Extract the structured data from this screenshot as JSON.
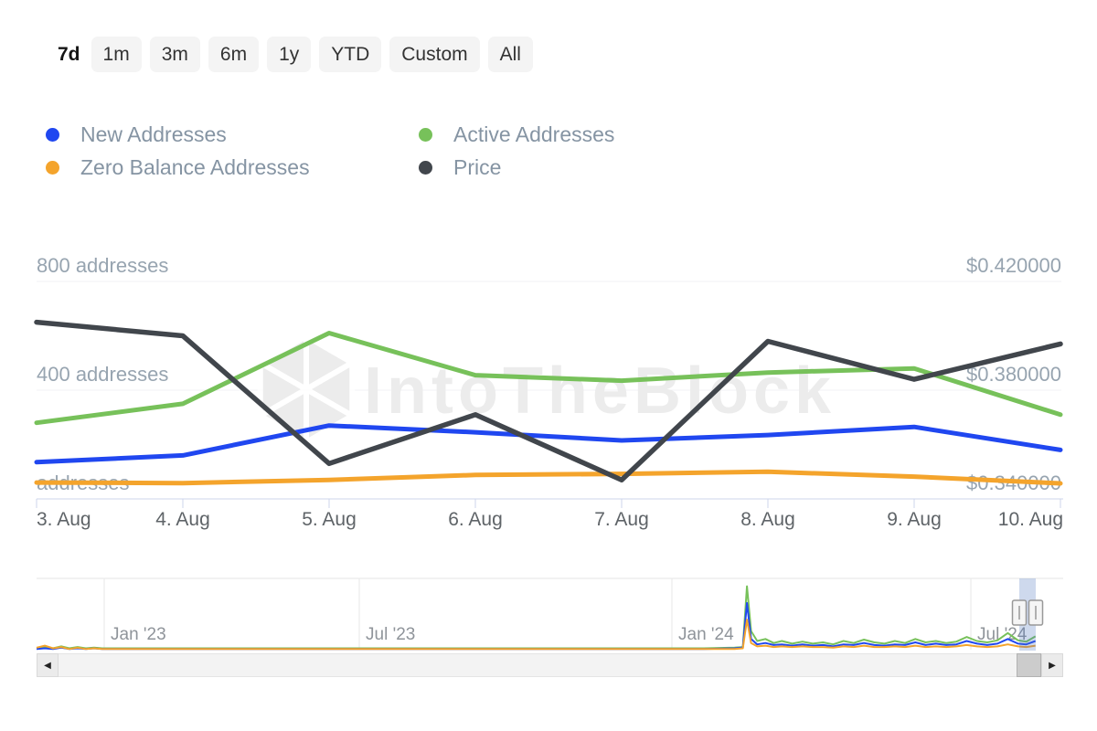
{
  "range_selector": {
    "buttons": [
      "7d",
      "1m",
      "3m",
      "6m",
      "1y",
      "YTD",
      "Custom",
      "All"
    ],
    "selected": "7d"
  },
  "legend": [
    {
      "label": "New Addresses",
      "color": "#2047f0"
    },
    {
      "label": "Active Addresses",
      "color": "#77c15a"
    },
    {
      "label": "Zero Balance Addresses",
      "color": "#f4a42c"
    },
    {
      "label": "Price",
      "color": "#41464c"
    }
  ],
  "watermark": {
    "text": "IntoTheBlock"
  },
  "scrollbar": {
    "left_glyph": "◀",
    "right_glyph": "▶"
  },
  "chart_data": {
    "type": "line",
    "title": "",
    "categories": [
      "3. Aug",
      "4. Aug",
      "5. Aug",
      "6. Aug",
      "7. Aug",
      "8. Aug",
      "9. Aug",
      "10. Aug"
    ],
    "series": [
      {
        "name": "Active Addresses",
        "color": "#77c15a",
        "axis": "addresses",
        "values": [
          280,
          350,
          610,
          455,
          435,
          465,
          480,
          310
        ]
      },
      {
        "name": "New Addresses",
        "color": "#2047f0",
        "axis": "addresses",
        "values": [
          135,
          160,
          270,
          245,
          215,
          235,
          265,
          180
        ]
      },
      {
        "name": "Zero Balance Addresses",
        "color": "#f4a42c",
        "axis": "addresses",
        "values": [
          60,
          58,
          70,
          88,
          92,
          100,
          82,
          57
        ]
      },
      {
        "name": "Price",
        "color": "#41464c",
        "axis": "price",
        "values": [
          0.405,
          0.4,
          0.353,
          0.371,
          0.347,
          0.398,
          0.384,
          0.397
        ]
      }
    ],
    "y_left": {
      "labels": [
        "800 addresses",
        "400 addresses",
        "addresses"
      ],
      "values": [
        800,
        400,
        0
      ],
      "lim": [
        0,
        800
      ]
    },
    "y_right": {
      "labels": [
        "$0.420000",
        "$0.380000",
        "$0.340000"
      ],
      "values": [
        0.42,
        0.38,
        0.34
      ],
      "lim": [
        0.34,
        0.42
      ]
    },
    "grid": "horizontal",
    "legend_position": "top-left",
    "navigator": {
      "labels": [
        "Jan '23",
        "Jul '23",
        "Jan '24",
        "Jul '24"
      ],
      "note": "full-history mini chart, large spike near Jan '24, selection at right edge",
      "xs": [
        0,
        8,
        16,
        24,
        32,
        40,
        48,
        56,
        64,
        72,
        100,
        150,
        220,
        300,
        380,
        460,
        540,
        600,
        650,
        680,
        688,
        692,
        696,
        702,
        710,
        718,
        726,
        736,
        746,
        756,
        766,
        776,
        786,
        796,
        806,
        816,
        826,
        836,
        846,
        856,
        866,
        876,
        886,
        896,
        906,
        916,
        926,
        936,
        946,
        956,
        964,
        973
      ],
      "series": [
        {
          "name": "Active Addresses",
          "color": "#77c15a",
          "h": [
            2,
            4,
            2,
            5,
            2,
            4,
            2,
            3,
            2,
            2,
            2,
            2,
            2,
            2,
            2,
            2,
            2,
            2,
            2,
            3,
            4,
            95,
            28,
            13,
            16,
            10,
            13,
            9,
            12,
            9,
            11,
            8,
            13,
            10,
            15,
            11,
            9,
            13,
            10,
            16,
            11,
            13,
            10,
            12,
            19,
            13,
            11,
            14,
            25,
            14,
            12,
            20
          ]
        },
        {
          "name": "New Addresses",
          "color": "#2047f0",
          "h": [
            1,
            2,
            1,
            3,
            1,
            2,
            1,
            2,
            1,
            1,
            1,
            1,
            1,
            1,
            1,
            1,
            1,
            1,
            1,
            2,
            3,
            70,
            16,
            8,
            10,
            7,
            8,
            6,
            8,
            6,
            7,
            5,
            8,
            7,
            10,
            7,
            6,
            8,
            7,
            11,
            7,
            9,
            7,
            8,
            13,
            9,
            7,
            9,
            16,
            9,
            8,
            13
          ]
        },
        {
          "name": "Zero Balance Addresses",
          "color": "#f4a42c",
          "h": [
            3,
            6,
            2,
            4,
            1,
            3,
            1,
            2,
            1,
            1,
            1,
            1,
            1,
            1,
            1,
            1,
            1,
            1,
            1,
            1,
            2,
            45,
            10,
            5,
            6,
            4,
            5,
            4,
            5,
            4,
            4,
            3,
            5,
            4,
            6,
            4,
            4,
            5,
            4,
            6,
            4,
            5,
            4,
            5,
            7,
            5,
            4,
            5,
            8,
            5,
            4,
            6
          ]
        }
      ]
    }
  }
}
